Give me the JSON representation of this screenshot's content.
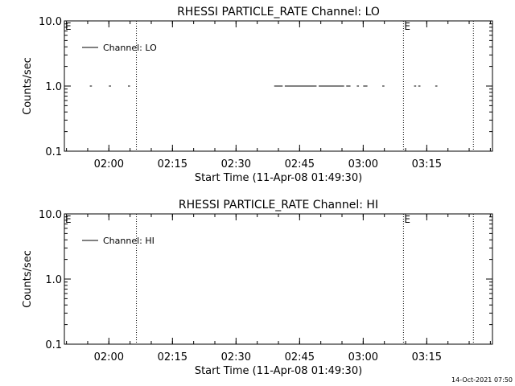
{
  "footer": {
    "timestamp": "14-Oct-2021 07:50"
  },
  "chart_data": [
    {
      "type": "line",
      "title": "RHESSI PARTICLE_RATE Channel: LO",
      "xlabel": "Start Time (11-Apr-08 01:49:30)",
      "ylabel": "Counts/sec",
      "x_unit": "UT time (hh:mm)",
      "xlim": [
        "01:49:30",
        "03:30:30"
      ],
      "ylim": [
        0.1,
        10.0
      ],
      "yscale": "log",
      "x_ticks": [
        "02:00",
        "02:15",
        "02:30",
        "02:45",
        "03:00",
        "03:15"
      ],
      "y_ticks": [
        "0.1",
        "1.0",
        "10.0"
      ],
      "legend": {
        "position": "top-left",
        "entries": [
          "Channel: LO"
        ]
      },
      "markers": [
        {
          "time": "02:06:30",
          "label": ""
        },
        {
          "time": "03:09:30",
          "label": "E"
        },
        {
          "time": "03:26:00",
          "label": ""
        }
      ],
      "corner_labels": [
        {
          "time": "01:49:30",
          "text": "E"
        }
      ],
      "series": [
        {
          "name": "Channel: LO",
          "segments": [
            {
              "start": "01:55:30",
              "end": "01:56:00",
              "value": 1.0
            },
            {
              "start": "02:00:00",
              "end": "02:00:30",
              "value": 1.0
            },
            {
              "start": "02:04:30",
              "end": "02:05:00",
              "value": 1.0
            },
            {
              "start": "02:39:00",
              "end": "02:41:00",
              "value": 1.0
            },
            {
              "start": "02:41:30",
              "end": "02:49:00",
              "value": 1.0
            },
            {
              "start": "02:49:30",
              "end": "02:55:30",
              "value": 1.0
            },
            {
              "start": "02:56:00",
              "end": "02:57:00",
              "value": 1.0
            },
            {
              "start": "02:58:30",
              "end": "02:59:00",
              "value": 1.0
            },
            {
              "start": "03:00:00",
              "end": "03:01:00",
              "value": 1.0
            },
            {
              "start": "03:04:30",
              "end": "03:05:00",
              "value": 1.0
            },
            {
              "start": "03:12:00",
              "end": "03:12:30",
              "value": 1.0
            },
            {
              "start": "03:13:00",
              "end": "03:13:30",
              "value": 1.0
            },
            {
              "start": "03:17:00",
              "end": "03:17:30",
              "value": 1.0
            }
          ]
        }
      ]
    },
    {
      "type": "line",
      "title": "RHESSI PARTICLE_RATE Channel: HI",
      "xlabel": "Start Time (11-Apr-08 01:49:30)",
      "ylabel": "Counts/sec",
      "x_unit": "UT time (hh:mm)",
      "xlim": [
        "01:49:30",
        "03:30:30"
      ],
      "ylim": [
        0.1,
        10.0
      ],
      "yscale": "log",
      "x_ticks": [
        "02:00",
        "02:15",
        "02:30",
        "02:45",
        "03:00",
        "03:15"
      ],
      "y_ticks": [
        "0.1",
        "1.0",
        "10.0"
      ],
      "legend": {
        "position": "top-left",
        "entries": [
          "Channel: HI"
        ]
      },
      "markers": [
        {
          "time": "02:06:30",
          "label": ""
        },
        {
          "time": "03:09:30",
          "label": "E"
        },
        {
          "time": "03:26:00",
          "label": ""
        }
      ],
      "corner_labels": [
        {
          "time": "01:49:30",
          "text": "E"
        }
      ],
      "series": [
        {
          "name": "Channel: HI",
          "segments": []
        }
      ]
    }
  ]
}
